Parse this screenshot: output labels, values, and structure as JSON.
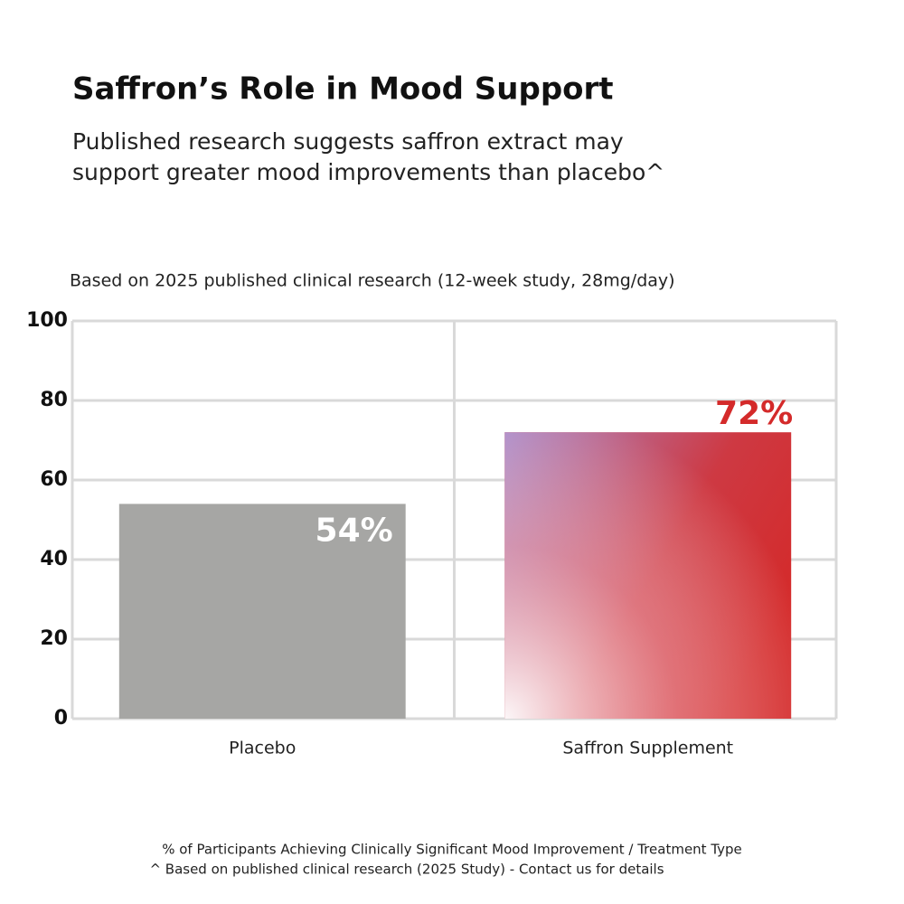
{
  "chart_data": {
    "type": "bar",
    "title": "Saffron’s Role in Mood Support",
    "subtitle": [
      "Published research suggests saffron extract may",
      "support greater mood improvements than placebo^"
    ],
    "note": "Based on 2025 published clinical research (12-week study, 28mg/day)",
    "categories": [
      "Placebo",
      "Saffron Supplement"
    ],
    "values": [
      54,
      72
    ],
    "value_labels": [
      "54%",
      "72%"
    ],
    "colors": [
      "#a6a6a4",
      "#d42a2a"
    ],
    "label_colors": [
      "#ffffff",
      "#d42a2a"
    ],
    "ylim": [
      0,
      100
    ],
    "yticks": [
      0,
      20,
      40,
      60,
      80,
      100
    ],
    "grid": true,
    "footnotes": [
      "% of Participants Achieving Clinically Significant Mood Improvement / Treatment Type",
      "^ Based on published clinical research (2025 Study) - Contact us for details"
    ]
  }
}
